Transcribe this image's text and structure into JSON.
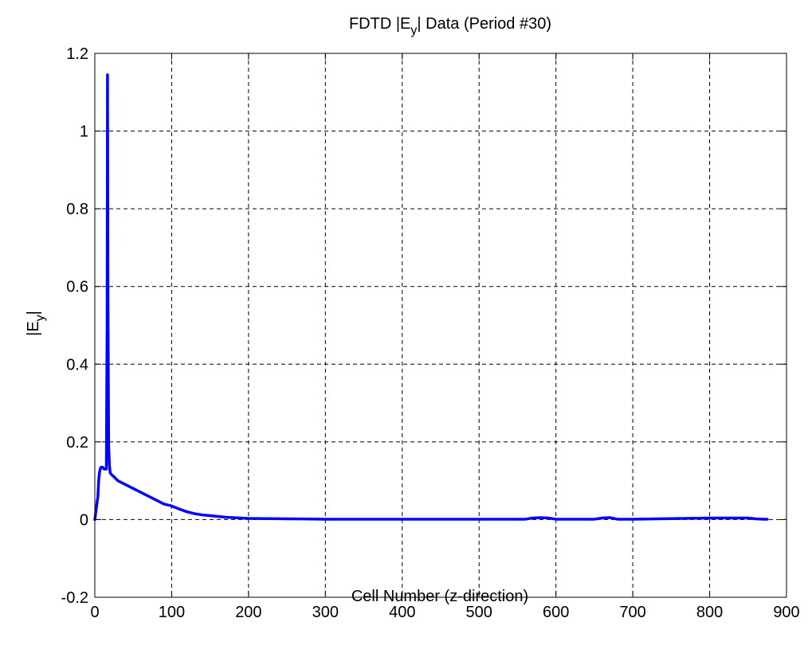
{
  "chart_data": {
    "type": "line",
    "title": {
      "prefix": "FDTD |E",
      "sub": "y",
      "suffix": "| Data (Period #30)"
    },
    "xlabel": "Cell Number (z-direction)",
    "ylabel": {
      "prefix": "|E",
      "sub": "y",
      "suffix": "|"
    },
    "xlim": [
      0,
      900
    ],
    "ylim": [
      -0.2,
      1.2
    ],
    "xticks": [
      0,
      100,
      200,
      300,
      400,
      500,
      600,
      700,
      800,
      900
    ],
    "xtick_labels": [
      "0",
      "100",
      "200",
      "300",
      "400",
      "500",
      "600",
      "700",
      "800",
      "900"
    ],
    "yticks": [
      -0.2,
      0,
      0.2,
      0.4,
      0.6,
      0.8,
      1,
      1.2
    ],
    "ytick_labels": [
      "-0.2",
      "0",
      "0.2",
      "0.4",
      "0.6",
      "0.8",
      "1",
      "1.2"
    ],
    "grid": true,
    "series": [
      {
        "color": "#0000ff",
        "x": [
          0,
          2,
          4,
          5,
          6,
          7,
          8,
          9,
          10,
          12,
          14,
          15,
          16,
          16.5,
          17,
          18,
          19,
          20,
          22,
          25,
          30,
          40,
          50,
          60,
          70,
          80,
          90,
          100,
          110,
          120,
          130,
          140,
          150,
          160,
          170,
          180,
          190,
          200,
          250,
          300,
          400,
          500,
          560,
          570,
          580,
          590,
          600,
          650,
          660,
          670,
          680,
          700,
          800,
          850,
          860,
          870,
          875
        ],
        "y": [
          0,
          0.03,
          0.06,
          0.1,
          0.12,
          0.13,
          0.135,
          0.135,
          0.135,
          0.13,
          0.13,
          0.13,
          0.5,
          1.145,
          0.6,
          0.19,
          0.14,
          0.12,
          0.115,
          0.11,
          0.1,
          0.09,
          0.08,
          0.07,
          0.06,
          0.05,
          0.04,
          0.035,
          0.027,
          0.02,
          0.015,
          0.012,
          0.01,
          0.008,
          0.006,
          0.005,
          0.004,
          0.003,
          0.002,
          0.001,
          0.001,
          0.001,
          0.001,
          0.004,
          0.005,
          0.004,
          0.001,
          0.001,
          0.004,
          0.005,
          0.001,
          0.001,
          0.004,
          0.004,
          0.002,
          0.001,
          0.001
        ]
      }
    ]
  }
}
